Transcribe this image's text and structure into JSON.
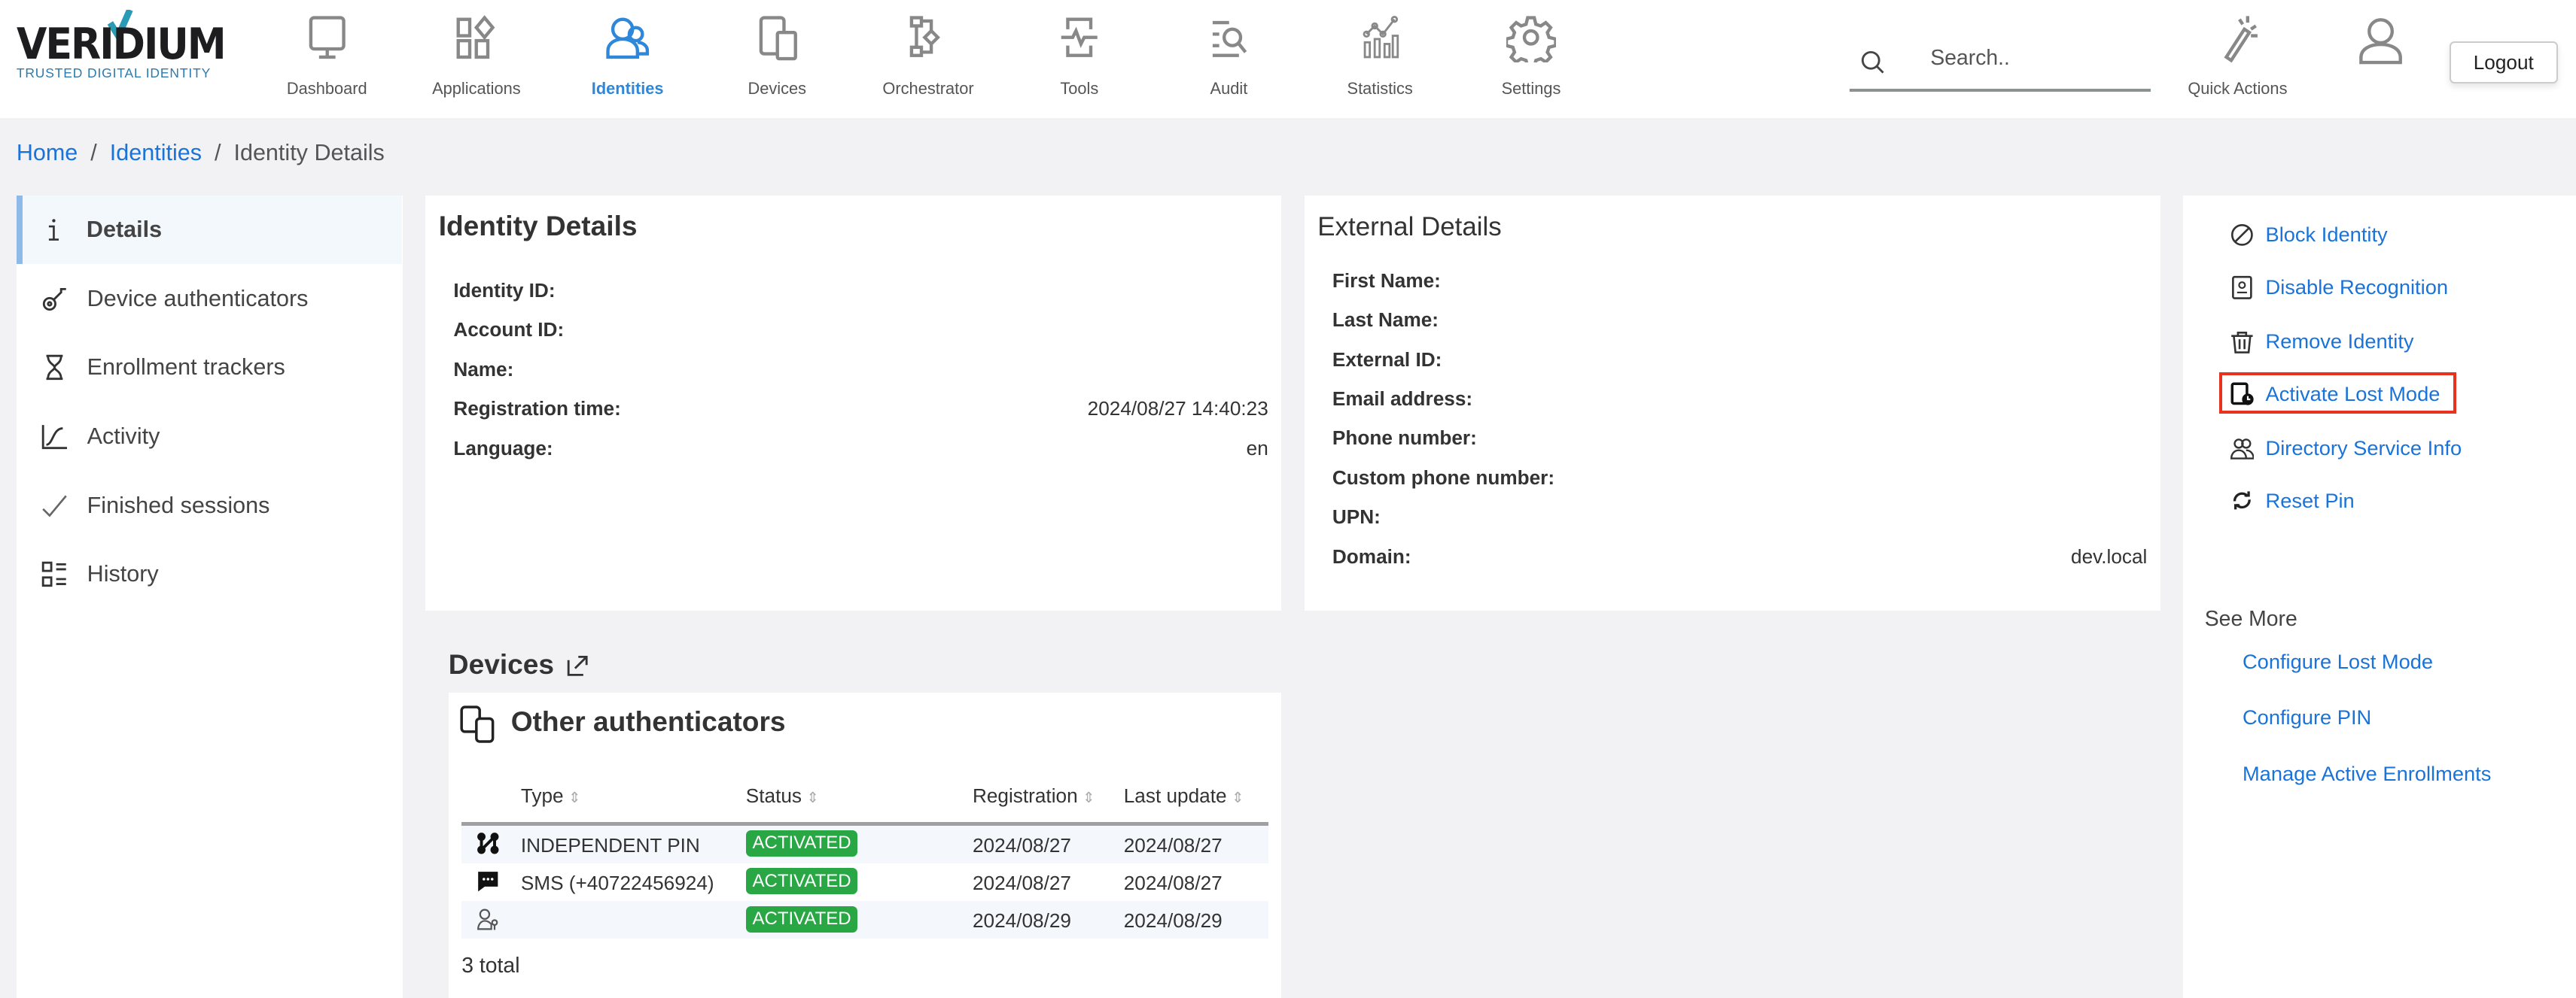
{
  "header": {
    "logo_text": "VERIDIUM",
    "logo_tagline": "TRUSTED DIGITAL IDENTITY",
    "nav": [
      {
        "label": "Dashboard",
        "icon": "monitor-icon"
      },
      {
        "label": "Applications",
        "icon": "apps-icon"
      },
      {
        "label": "Identities",
        "icon": "users-icon",
        "active": true
      },
      {
        "label": "Devices",
        "icon": "devices-icon"
      },
      {
        "label": "Orchestrator",
        "icon": "flow-icon"
      },
      {
        "label": "Tools",
        "icon": "pulse-icon"
      },
      {
        "label": "Audit",
        "icon": "list-search-icon"
      },
      {
        "label": "Statistics",
        "icon": "stats-icon"
      },
      {
        "label": "Settings",
        "icon": "gear-icon"
      }
    ],
    "search_placeholder": "Search..",
    "quick_actions": "Quick Actions",
    "logout": "Logout"
  },
  "breadcrumb": {
    "home": "Home",
    "identities": "Identities",
    "current": "Identity Details"
  },
  "sidebar": {
    "items": [
      {
        "label": "Details",
        "icon": "info-icon",
        "active": true
      },
      {
        "label": "Device authenticators",
        "icon": "key-icon"
      },
      {
        "label": "Enrollment trackers",
        "icon": "hourglass-icon"
      },
      {
        "label": "Activity",
        "icon": "chart-line-icon"
      },
      {
        "label": "Finished sessions",
        "icon": "check-icon"
      },
      {
        "label": "History",
        "icon": "history-list-icon"
      }
    ]
  },
  "identity": {
    "title": "Identity Details",
    "rows": [
      {
        "label": "Identity ID:",
        "value": ""
      },
      {
        "label": "Account ID:",
        "value": ""
      },
      {
        "label": "Name:",
        "value": ""
      },
      {
        "label": "Registration time:",
        "value": "2024/08/27 14:40:23"
      },
      {
        "label": "Language:",
        "value": "en"
      }
    ]
  },
  "external": {
    "title": "External Details",
    "rows": [
      {
        "label": "First Name:",
        "value": ""
      },
      {
        "label": "Last Name:",
        "value": ""
      },
      {
        "label": "External ID:",
        "value": ""
      },
      {
        "label": "Email address:",
        "value": ""
      },
      {
        "label": "Phone number:",
        "value": ""
      },
      {
        "label": "Custom phone number:",
        "value": ""
      },
      {
        "label": "UPN:",
        "value": ""
      },
      {
        "label": "Domain:",
        "value": "dev.local"
      }
    ]
  },
  "actions": [
    {
      "label": "Block Identity",
      "icon": "block-icon"
    },
    {
      "label": "Disable Recognition",
      "icon": "id-badge-icon"
    },
    {
      "label": "Remove Identity",
      "icon": "trash-icon"
    },
    {
      "label": "Activate Lost Mode",
      "icon": "lost-device-icon",
      "highlighted": true
    },
    {
      "label": "Directory Service Info",
      "icon": "user-group-icon"
    },
    {
      "label": "Reset Pin",
      "icon": "refresh-icon"
    }
  ],
  "see_more": {
    "title": "See More",
    "links": [
      "Configure Lost Mode",
      "Configure PIN",
      "Manage Active Enrollments"
    ]
  },
  "devices": {
    "title": "Devices",
    "other_title": "Other authenticators",
    "columns": [
      "Type",
      "Status",
      "Registration",
      "Last update"
    ],
    "rows": [
      {
        "icon": "pin-icon",
        "type": "INDEPENDENT PIN",
        "status": "ACTIVATED",
        "registration": "2024/08/27",
        "last_update": "2024/08/27"
      },
      {
        "icon": "sms-icon",
        "type": "SMS (+40722456924)",
        "status": "ACTIVATED",
        "registration": "2024/08/27",
        "last_update": "2024/08/27"
      },
      {
        "icon": "user-key-icon",
        "type": "",
        "status": "ACTIVATED",
        "registration": "2024/08/29",
        "last_update": "2024/08/29"
      }
    ],
    "total": "3 total"
  },
  "colors": {
    "accent": "#1a73d9",
    "active_nav": "#2f87d9",
    "badge": "#2aa745",
    "highlight": "#e8321e"
  }
}
